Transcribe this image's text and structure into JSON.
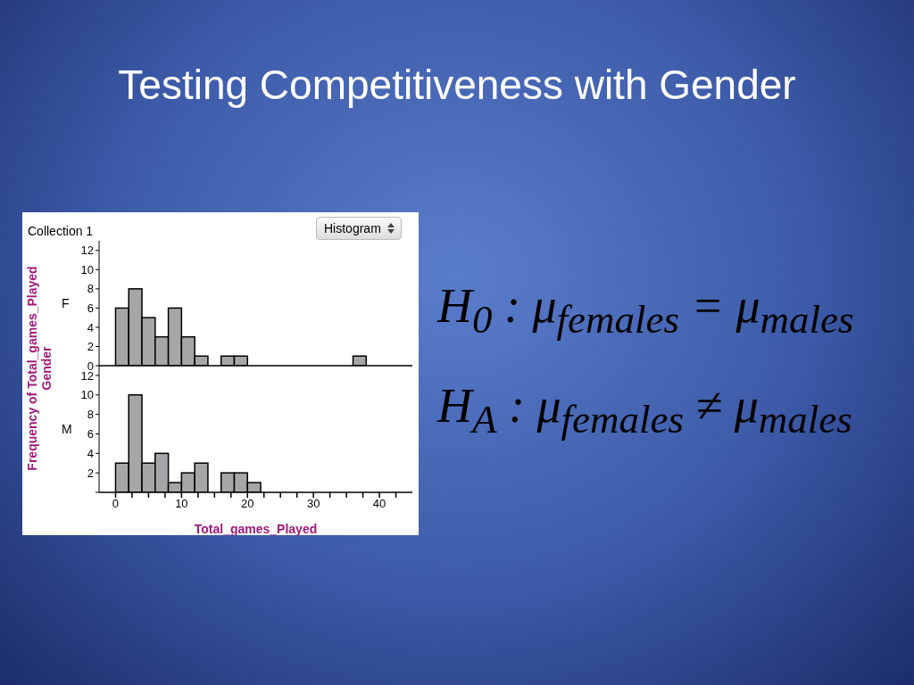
{
  "chart_data": [
    {
      "type": "histogram",
      "title": "Testing Competitiveness with Gender",
      "ylabel": "F",
      "bins": [
        0,
        2,
        4,
        6,
        8,
        10,
        12,
        14,
        16,
        18,
        20,
        22,
        24,
        26,
        28,
        30,
        32,
        34,
        36,
        38
      ],
      "values": [
        6,
        8,
        5,
        3,
        6,
        3,
        1,
        0,
        1,
        1,
        0,
        0,
        0,
        0,
        0,
        0,
        0,
        0,
        1
      ],
      "color": "#a6a6a8",
      "xlim": [
        -2.5,
        45
      ],
      "ylim": [
        0,
        13
      ],
      "yticks": [
        0,
        2,
        4,
        6,
        8,
        10,
        12
      ],
      "tick_labels": "y",
      "grid": false,
      "legend": false,
      "annotations": [
        "Collection 1",
        "Histogram",
        "Frequency of Total_games_Played",
        "Gender",
        "H$_{0}$ : μ$_{females}$ = μ$_{males}$",
        "H$_{A}$ : μ$_{females}$ ≠ μ$_{males}$"
      ]
    },
    {
      "type": "histogram",
      "ylabel": "M",
      "xlabel": "Total_games_Played",
      "bins": [
        0,
        2,
        4,
        6,
        8,
        10,
        12,
        14,
        16,
        18,
        20,
        22
      ],
      "values": [
        3,
        10,
        3,
        4,
        1,
        2,
        3,
        0,
        2,
        2,
        1
      ],
      "color": "#a6a6a8",
      "xlim": [
        -2.5,
        45
      ],
      "ylim": [
        0,
        13
      ],
      "yticks": [
        {
          "value": 0,
          "label": null
        },
        2,
        4,
        6,
        8,
        10,
        12
      ],
      "xticks": [
        0,
        {
          "value": 2.5,
          "label": null
        },
        {
          "value": 5,
          "label": null
        },
        {
          "value": 7.5,
          "label": null
        },
        10,
        {
          "value": 12.5,
          "label": null
        },
        {
          "value": 15,
          "label": null
        },
        {
          "value": 17.5,
          "label": null
        },
        20,
        {
          "value": 22.5,
          "label": null
        },
        {
          "value": 25,
          "label": null
        },
        {
          "value": 27.5,
          "label": null
        },
        30,
        {
          "value": 32.5,
          "label": null
        },
        {
          "value": 35,
          "label": null
        },
        {
          "value": 37.5,
          "label": null
        },
        40,
        {
          "value": 42.5,
          "label": null
        }
      ],
      "grid": false,
      "legend": false
    }
  ]
}
